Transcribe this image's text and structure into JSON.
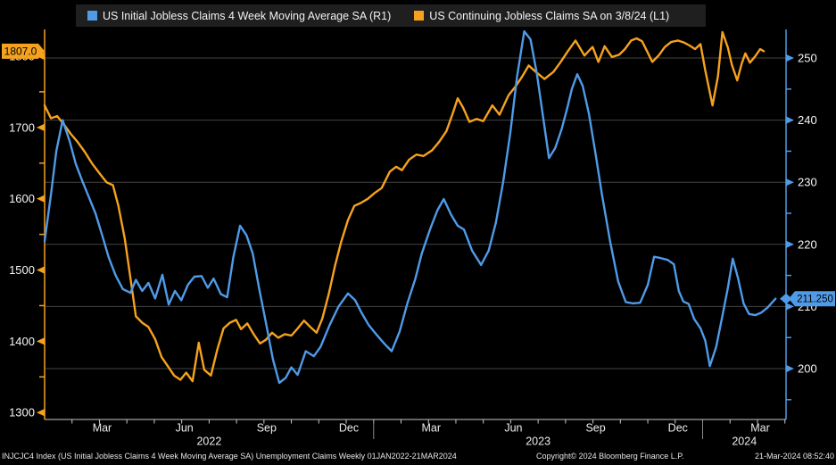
{
  "legend": {
    "entries": [
      {
        "id": "initial-claims",
        "label": "US Initial Jobless Claims 4 Week Moving Average SA  (R1)",
        "color": "#4F9BE8"
      },
      {
        "id": "continuing-claims",
        "label": "US Continuing Jobless Claims SA  on 3/8/24 (L1)",
        "color": "#F6A21E"
      }
    ]
  },
  "footer": {
    "left": "INJCJC4 Index (US Initial Jobless Claims 4 Week Moving Average SA) Unemployment Claims  Weekly 01JAN2022-21MAR2024",
    "center": "Copyright© 2024 Bloomberg Finance L.P.",
    "right": "21-Mar-2024 08:52:40"
  },
  "chart_data": {
    "type": "line",
    "x_axis": {
      "start": "2022-01-01",
      "end": "2024-03-21",
      "quarter_labels": [
        "Mar",
        "Jun",
        "Sep",
        "Dec"
      ],
      "years": [
        "2022",
        "2023",
        "2024"
      ]
    },
    "left_axis": {
      "name": "L1",
      "color": "#F6A21E",
      "ticks": [
        1800,
        1700,
        1600,
        1500,
        1400,
        1300
      ],
      "minor_ticks": [
        1750,
        1650,
        1550,
        1450,
        1350
      ],
      "last_value": 1807.0,
      "last_label": "1807.0"
    },
    "right_axis": {
      "name": "R1",
      "color": "#4F9BE8",
      "ticks": [
        250,
        240,
        230,
        220,
        210,
        200
      ],
      "minor_ticks": [
        245,
        235,
        225,
        215,
        205,
        195
      ],
      "last_value": 211.25,
      "last_label": "211.250"
    },
    "series": [
      {
        "id": "continuing-claims",
        "name": "US Continuing Jobless Claims SA",
        "axis": "L1",
        "color": "#F6A21E",
        "unit": "thousands",
        "points": [
          [
            "2022-01-01",
            1731
          ],
          [
            "2022-01-08",
            1713
          ],
          [
            "2022-01-15",
            1716
          ],
          [
            "2022-01-22",
            1705
          ],
          [
            "2022-01-30",
            1691
          ],
          [
            "2022-02-07",
            1680
          ],
          [
            "2022-02-15",
            1666
          ],
          [
            "2022-02-23",
            1650
          ],
          [
            "2022-03-02",
            1634
          ],
          [
            "2022-03-09",
            1623
          ],
          [
            "2022-03-16",
            1619
          ],
          [
            "2022-03-22",
            1590
          ],
          [
            "2022-03-29",
            1545
          ],
          [
            "2022-04-06",
            1480
          ],
          [
            "2022-04-11",
            1435
          ],
          [
            "2022-04-18",
            1426
          ],
          [
            "2022-04-25",
            1420
          ],
          [
            "2022-05-02",
            1403
          ],
          [
            "2022-05-09",
            1378
          ],
          [
            "2022-05-16",
            1365
          ],
          [
            "2022-05-23",
            1352
          ],
          [
            "2022-05-30",
            1346
          ],
          [
            "2022-06-06",
            1356
          ],
          [
            "2022-06-13",
            1344
          ],
          [
            "2022-06-20",
            1398
          ],
          [
            "2022-06-26",
            1360
          ],
          [
            "2022-07-03",
            1352
          ],
          [
            "2022-07-10",
            1388
          ],
          [
            "2022-07-17",
            1418
          ],
          [
            "2022-07-24",
            1426
          ],
          [
            "2022-07-31",
            1430
          ],
          [
            "2022-08-06",
            1417
          ],
          [
            "2022-08-13",
            1425
          ],
          [
            "2022-08-20",
            1410
          ],
          [
            "2022-08-27",
            1397
          ],
          [
            "2022-09-03",
            1402
          ],
          [
            "2022-09-10",
            1412
          ],
          [
            "2022-09-17",
            1405
          ],
          [
            "2022-09-24",
            1410
          ],
          [
            "2022-10-01",
            1408
          ],
          [
            "2022-10-08",
            1418
          ],
          [
            "2022-10-15",
            1429
          ],
          [
            "2022-10-22",
            1420
          ],
          [
            "2022-10-29",
            1412
          ],
          [
            "2022-11-05",
            1432
          ],
          [
            "2022-11-12",
            1466
          ],
          [
            "2022-11-19",
            1506
          ],
          [
            "2022-11-26",
            1540
          ],
          [
            "2022-12-03",
            1570
          ],
          [
            "2022-12-10",
            1590
          ],
          [
            "2022-12-17",
            1594
          ],
          [
            "2022-12-25",
            1600
          ],
          [
            "2023-01-02",
            1608
          ],
          [
            "2023-01-10",
            1615
          ],
          [
            "2023-01-19",
            1638
          ],
          [
            "2023-01-26",
            1645
          ],
          [
            "2023-02-02",
            1640
          ],
          [
            "2023-02-10",
            1655
          ],
          [
            "2023-02-18",
            1662
          ],
          [
            "2023-02-26",
            1660
          ],
          [
            "2023-03-05",
            1668
          ],
          [
            "2023-03-13",
            1680
          ],
          [
            "2023-03-21",
            1695
          ],
          [
            "2023-03-28",
            1720
          ],
          [
            "2023-04-03",
            1741
          ],
          [
            "2023-04-09",
            1728
          ],
          [
            "2023-04-16",
            1708
          ],
          [
            "2023-04-24",
            1712
          ],
          [
            "2023-05-01",
            1709
          ],
          [
            "2023-05-11",
            1731
          ],
          [
            "2023-05-19",
            1718
          ],
          [
            "2023-05-29",
            1745
          ],
          [
            "2023-06-06",
            1757
          ],
          [
            "2023-06-14",
            1772
          ],
          [
            "2023-06-21",
            1787
          ],
          [
            "2023-06-28",
            1779
          ],
          [
            "2023-07-08",
            1768
          ],
          [
            "2023-07-18",
            1778
          ],
          [
            "2023-07-26",
            1792
          ],
          [
            "2023-08-03",
            1806
          ],
          [
            "2023-08-12",
            1822
          ],
          [
            "2023-08-22",
            1801
          ],
          [
            "2023-08-31",
            1813
          ],
          [
            "2023-09-07",
            1792
          ],
          [
            "2023-09-14",
            1814
          ],
          [
            "2023-09-22",
            1799
          ],
          [
            "2023-09-30",
            1802
          ],
          [
            "2023-10-06",
            1810
          ],
          [
            "2023-10-13",
            1822
          ],
          [
            "2023-10-19",
            1825
          ],
          [
            "2023-10-25",
            1821
          ],
          [
            "2023-10-31",
            1806
          ],
          [
            "2023-11-06",
            1792
          ],
          [
            "2023-11-13",
            1801
          ],
          [
            "2023-11-20",
            1813
          ],
          [
            "2023-11-27",
            1820
          ],
          [
            "2023-12-04",
            1822
          ],
          [
            "2023-12-11",
            1819
          ],
          [
            "2023-12-17",
            1815
          ],
          [
            "2023-12-23",
            1810
          ],
          [
            "2023-12-29",
            1817
          ],
          [
            "2024-01-04",
            1780
          ],
          [
            "2024-01-12",
            1731
          ],
          [
            "2024-01-18",
            1772
          ],
          [
            "2024-01-23",
            1834
          ],
          [
            "2024-01-29",
            1812
          ],
          [
            "2024-02-03",
            1788
          ],
          [
            "2024-02-09",
            1766
          ],
          [
            "2024-02-14",
            1790
          ],
          [
            "2024-02-18",
            1804
          ],
          [
            "2024-02-23",
            1791
          ],
          [
            "2024-02-29",
            1800
          ],
          [
            "2024-03-04",
            1810
          ],
          [
            "2024-03-08",
            1807
          ]
        ]
      },
      {
        "id": "initial-claims",
        "name": "US Initial Jobless Claims 4 Week Moving Average SA",
        "axis": "R1",
        "color": "#4F9BE8",
        "unit": "thousands",
        "points": [
          [
            "2022-01-01",
            220.5
          ],
          [
            "2022-01-08",
            228
          ],
          [
            "2022-01-14",
            235
          ],
          [
            "2022-01-21",
            240
          ],
          [
            "2022-01-29",
            236.5
          ],
          [
            "2022-02-05",
            233
          ],
          [
            "2022-02-13",
            230
          ],
          [
            "2022-02-20",
            227.5
          ],
          [
            "2022-02-27",
            225
          ],
          [
            "2022-03-05",
            221
          ],
          [
            "2022-03-11",
            218
          ],
          [
            "2022-03-19",
            215
          ],
          [
            "2022-03-27",
            212.8
          ],
          [
            "2022-04-05",
            212.2
          ],
          [
            "2022-04-11",
            214.3
          ],
          [
            "2022-04-18",
            212.5
          ],
          [
            "2022-04-25",
            213.8
          ],
          [
            "2022-05-02",
            211.3
          ],
          [
            "2022-05-10",
            215.1
          ],
          [
            "2022-05-17",
            210.3
          ],
          [
            "2022-05-24",
            212.5
          ],
          [
            "2022-05-31",
            211
          ],
          [
            "2022-06-08",
            213.5
          ],
          [
            "2022-06-15",
            214.8
          ],
          [
            "2022-06-23",
            214.9
          ],
          [
            "2022-06-30",
            213
          ],
          [
            "2022-07-06",
            214.5
          ],
          [
            "2022-07-14",
            212
          ],
          [
            "2022-07-21",
            211.5
          ],
          [
            "2022-07-28",
            218
          ],
          [
            "2022-08-05",
            223
          ],
          [
            "2022-08-12",
            221.5
          ],
          [
            "2022-08-19",
            218.5
          ],
          [
            "2022-08-26",
            213
          ],
          [
            "2022-09-03",
            207.5
          ],
          [
            "2022-09-11",
            201.5
          ],
          [
            "2022-09-18",
            197.7
          ],
          [
            "2022-09-25",
            198.5
          ],
          [
            "2022-10-01",
            200.2
          ],
          [
            "2022-10-08",
            199
          ],
          [
            "2022-10-17",
            202.8
          ],
          [
            "2022-10-26",
            202
          ],
          [
            "2022-11-03",
            203.5
          ],
          [
            "2022-11-13",
            207
          ],
          [
            "2022-11-23",
            210
          ],
          [
            "2022-12-03",
            212.1
          ],
          [
            "2022-12-11",
            211
          ],
          [
            "2022-12-18",
            209
          ],
          [
            "2022-12-26",
            207
          ],
          [
            "2023-01-04",
            205.5
          ],
          [
            "2023-01-13",
            204
          ],
          [
            "2023-01-21",
            202.8
          ],
          [
            "2023-01-30",
            206
          ],
          [
            "2023-02-08",
            210.5
          ],
          [
            "2023-02-17",
            214.5
          ],
          [
            "2023-02-24",
            218.5
          ],
          [
            "2023-03-03",
            222.5
          ],
          [
            "2023-03-11",
            225.5
          ],
          [
            "2023-03-18",
            227.3
          ],
          [
            "2023-03-26",
            224.8
          ],
          [
            "2023-04-03",
            223
          ],
          [
            "2023-04-10",
            222.4
          ],
          [
            "2023-04-19",
            219
          ],
          [
            "2023-04-29",
            216.7
          ],
          [
            "2023-05-07",
            219
          ],
          [
            "2023-05-15",
            223.5
          ],
          [
            "2023-05-23",
            230
          ],
          [
            "2023-05-31",
            238
          ],
          [
            "2023-06-08",
            247
          ],
          [
            "2023-06-16",
            254.3
          ],
          [
            "2023-06-23",
            253
          ],
          [
            "2023-06-30",
            247.5
          ],
          [
            "2023-07-07",
            240
          ],
          [
            "2023-07-13",
            233.9
          ],
          [
            "2023-07-20",
            235.5
          ],
          [
            "2023-07-27",
            238.5
          ],
          [
            "2023-08-03",
            242
          ],
          [
            "2023-08-08",
            245
          ],
          [
            "2023-08-14",
            247.4
          ],
          [
            "2023-08-20",
            245.5
          ],
          [
            "2023-08-27",
            241
          ],
          [
            "2023-09-04",
            234.5
          ],
          [
            "2023-09-11",
            228
          ],
          [
            "2023-09-20",
            220.5
          ],
          [
            "2023-09-29",
            214
          ],
          [
            "2023-10-07",
            210.7
          ],
          [
            "2023-10-15",
            210.5
          ],
          [
            "2023-10-23",
            210.6
          ],
          [
            "2023-11-01",
            213.5
          ],
          [
            "2023-11-08",
            218
          ],
          [
            "2023-11-15",
            217.8
          ],
          [
            "2023-11-23",
            217.5
          ],
          [
            "2023-11-30",
            216.8
          ],
          [
            "2023-12-05",
            212.5
          ],
          [
            "2023-12-10",
            210.8
          ],
          [
            "2023-12-16",
            210.4
          ],
          [
            "2023-12-22",
            208
          ],
          [
            "2023-12-29",
            206.5
          ],
          [
            "2024-01-04",
            204.5
          ],
          [
            "2024-01-09",
            200.4
          ],
          [
            "2024-01-16",
            203.5
          ],
          [
            "2024-01-23",
            208.5
          ],
          [
            "2024-01-29",
            213
          ],
          [
            "2024-02-04",
            217.7
          ],
          [
            "2024-02-10",
            214.5
          ],
          [
            "2024-02-16",
            210.5
          ],
          [
            "2024-02-22",
            208.8
          ],
          [
            "2024-02-29",
            208.6
          ],
          [
            "2024-03-05",
            209
          ],
          [
            "2024-03-12",
            209.8
          ],
          [
            "2024-03-21",
            211.25
          ]
        ]
      }
    ],
    "grid": "horizontal-only",
    "legend_position": "top"
  }
}
